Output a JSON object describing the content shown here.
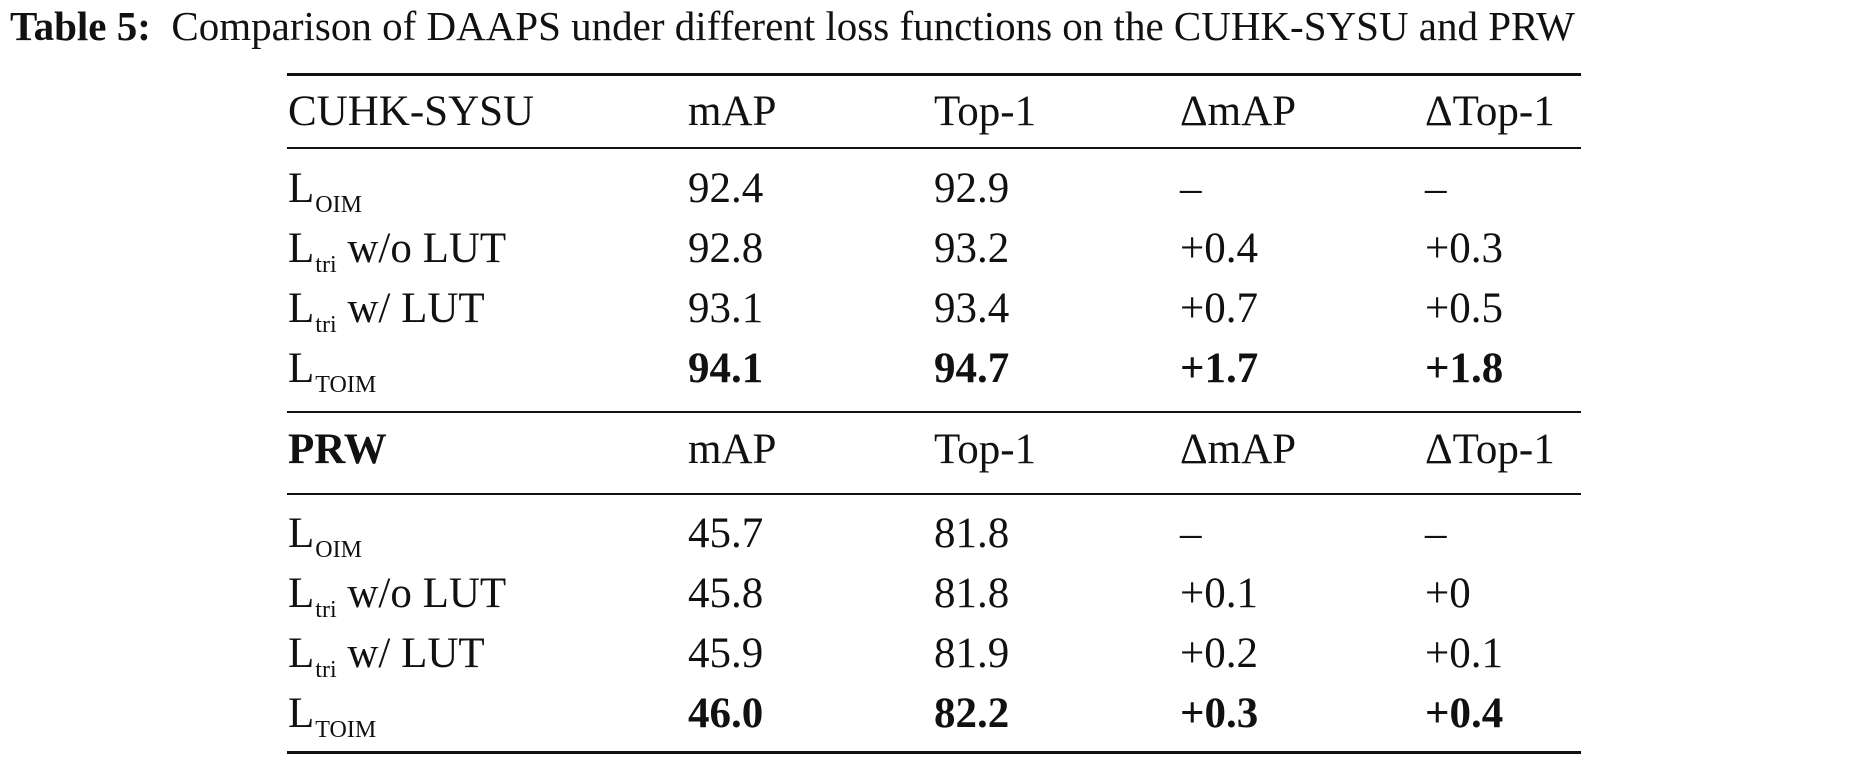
{
  "caption": {
    "label": "Table 5:",
    "text": "Comparison of DAAPS under different loss functions on the CUHK-SYSU and PRW"
  },
  "sections": [
    {
      "header": [
        "CUHK-SYSU",
        "mAP",
        "Top-1",
        "ΔmAP",
        "ΔTop-1"
      ],
      "rows": [
        {
          "base": "L",
          "sub": "OIM",
          "suffix": "",
          "values": [
            "92.4",
            "92.9",
            "–",
            "–"
          ]
        },
        {
          "base": "L",
          "sub": "tri",
          "suffix": " w/o LUT",
          "values": [
            "92.8",
            "93.2",
            "+0.4",
            "+0.3"
          ]
        },
        {
          "base": "L",
          "sub": "tri",
          "suffix": " w/ LUT",
          "values": [
            "93.1",
            "93.4",
            "+0.7",
            "+0.5"
          ]
        },
        {
          "base": "L",
          "sub": "TOIM",
          "suffix": "",
          "values": [
            "94.1",
            "94.7",
            "+1.7",
            "+1.8"
          ]
        }
      ]
    },
    {
      "header": [
        "PRW",
        "mAP",
        "Top-1",
        "ΔmAP",
        "ΔTop-1"
      ],
      "rows": [
        {
          "base": "L",
          "sub": "OIM",
          "suffix": "",
          "values": [
            "45.7",
            "81.8",
            "–",
            "–"
          ]
        },
        {
          "base": "L",
          "sub": "tri",
          "suffix": " w/o LUT",
          "values": [
            "45.8",
            "81.8",
            "+0.1",
            "+0"
          ]
        },
        {
          "base": "L",
          "sub": "tri",
          "suffix": " w/ LUT",
          "values": [
            "45.9",
            "81.9",
            "+0.2",
            "+0.1"
          ]
        },
        {
          "base": "L",
          "sub": "TOIM",
          "suffix": "",
          "values": [
            "46.0",
            "82.2",
            "+0.3",
            "+0.4"
          ]
        }
      ]
    }
  ]
}
